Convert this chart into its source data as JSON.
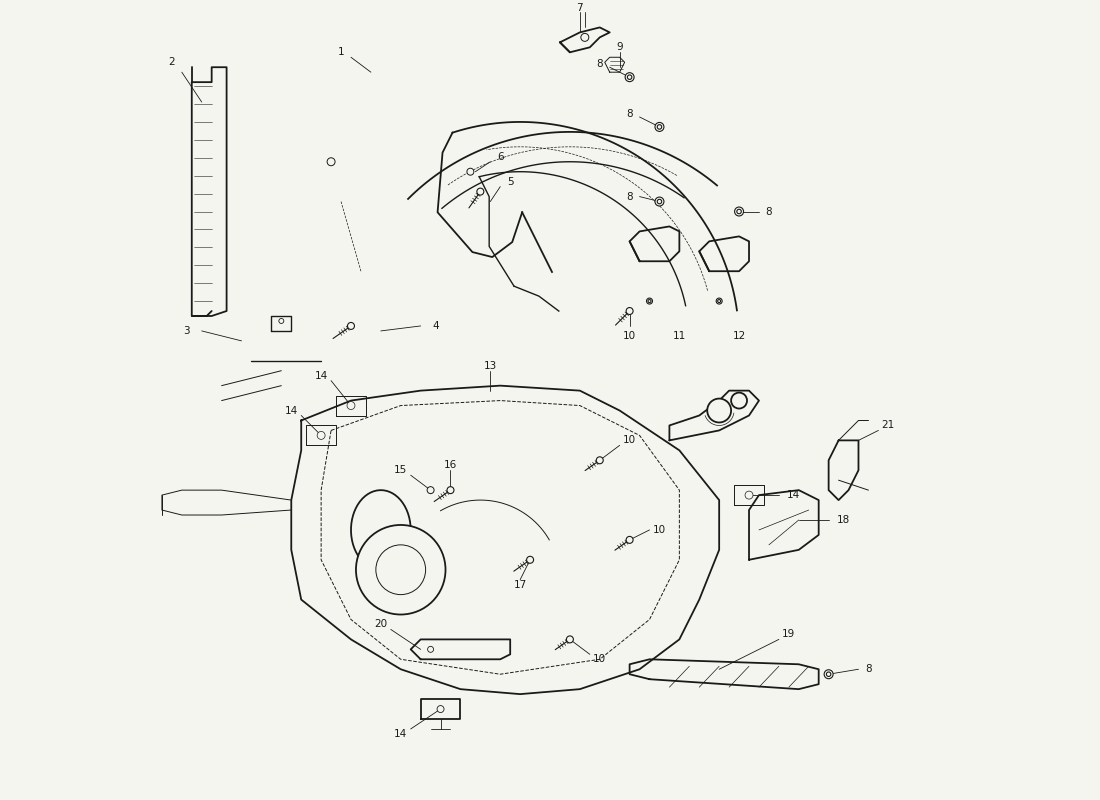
{
  "bg_color": "#f5f5f0",
  "line_color": "#1a1a1a",
  "text_color": "#1a1a1a",
  "fig_width": 11.0,
  "fig_height": 8.0,
  "dpi": 100
}
